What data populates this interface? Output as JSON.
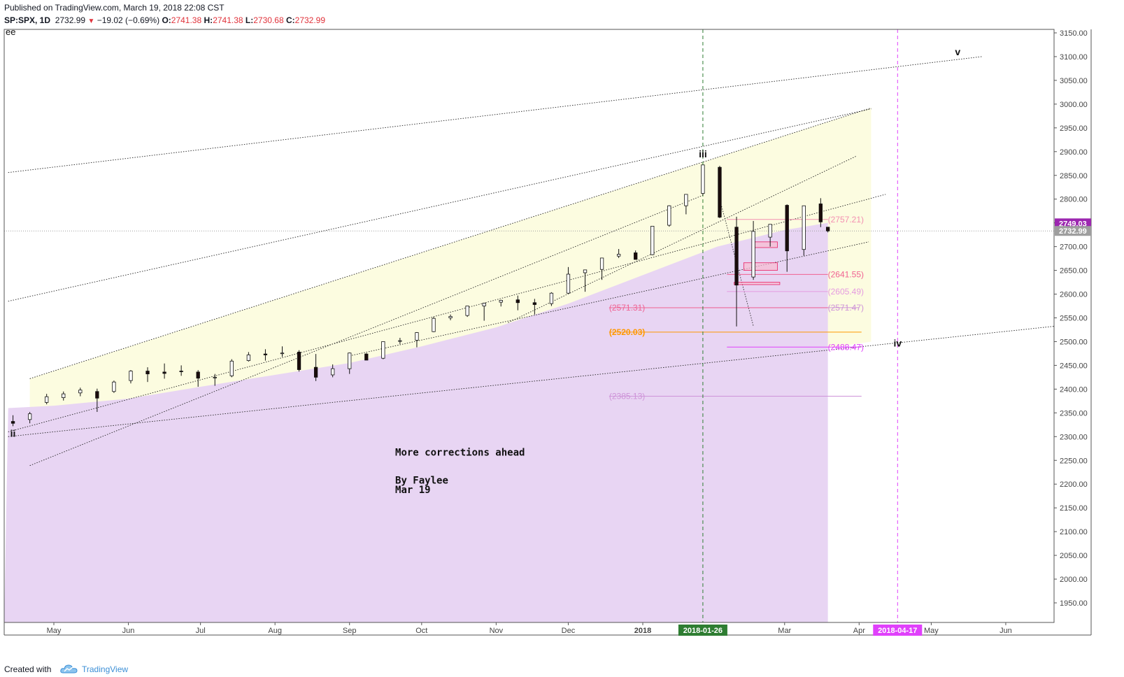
{
  "header": {
    "published": "Published on TradingView.com, March 19, 2018 22:08 CST",
    "symbol": "SP:SPX, 1D",
    "last": "2732.99",
    "change": "−19.02 (−0.69%)",
    "o_label": "O:",
    "o_value": "2741.38",
    "h_label": "H:",
    "h_value": "2741.38",
    "l_label": "L:",
    "l_value": "2730.68",
    "c_label": "C:",
    "c_value": "2732.99"
  },
  "footer": {
    "created": "Created with",
    "brand": "TradingView"
  },
  "chart_data": {
    "type": "candlestick",
    "symbol": "SP:SPX",
    "interval": "1D",
    "ylim": [
      1900,
      3170
    ],
    "y_ticks": [
      "3150.00",
      "3100.00",
      "3050.00",
      "3000.00",
      "2950.00",
      "2900.00",
      "2850.00",
      "2800.00",
      "2750.00",
      "2700.00",
      "2650.00",
      "2600.00",
      "2550.00",
      "2500.00",
      "2450.00",
      "2400.00",
      "2350.00",
      "2300.00",
      "2250.00",
      "2200.00",
      "2150.00",
      "2100.00",
      "2050.00",
      "2000.00",
      "1950.00"
    ],
    "y_tick_values": [
      3150,
      3100,
      3050,
      3000,
      2950,
      2900,
      2850,
      2800,
      2750,
      2700,
      2650,
      2600,
      2550,
      2500,
      2450,
      2400,
      2350,
      2300,
      2250,
      2200,
      2150,
      2100,
      2050,
      2000,
      1950
    ],
    "x_ticks": [
      {
        "label": "May",
        "date": "2017-05-01"
      },
      {
        "label": "Jun",
        "date": "2017-06-01"
      },
      {
        "label": "Jul",
        "date": "2017-07-01"
      },
      {
        "label": "Aug",
        "date": "2017-08-01"
      },
      {
        "label": "Sep",
        "date": "2017-09-01"
      },
      {
        "label": "Oct",
        "date": "2017-10-01"
      },
      {
        "label": "Nov",
        "date": "2017-11-01"
      },
      {
        "label": "Dec",
        "date": "2017-12-01"
      },
      {
        "label": "2018",
        "date": "2018-01-01"
      },
      {
        "label": "Mar",
        "date": "2018-03-01"
      },
      {
        "label": "Apr",
        "date": "2018-04-01"
      },
      {
        "label": "May",
        "date": "2018-05-01"
      },
      {
        "label": "Jun",
        "date": "2018-06-01"
      }
    ],
    "price_badges": [
      {
        "label": "2749.03",
        "value": 2749.03,
        "color": "#9c27b0"
      },
      {
        "label": "2732.99",
        "value": 2732.99,
        "color": "#9e9e9e"
      }
    ],
    "date_badges": [
      {
        "label": "2018-01-26",
        "color": "#2e7d32"
      },
      {
        "label": "2018-04-17",
        "color": "#e040fb"
      }
    ],
    "wave_labels": [
      {
        "text": "ii",
        "date": "2017-04-14",
        "value": 2300
      },
      {
        "text": "iii",
        "date": "2018-01-26",
        "value": 2888
      },
      {
        "text": "iv",
        "date": "2018-04-17",
        "value": 2490
      },
      {
        "text": "v",
        "date": "2018-05-12",
        "value": 3103
      }
    ],
    "fib_levels": [
      {
        "label": "(2757.21)",
        "value": 2757.21,
        "color": "#f48fb1"
      },
      {
        "label": "(2641.55)",
        "value": 2641.55,
        "color": "#f06292"
      },
      {
        "label": "(2605.49)",
        "value": 2605.49,
        "color": "#e59be0"
      },
      {
        "label": "(2571.47)",
        "value": 2571.47,
        "color": "#ce93d8"
      },
      {
        "label": "(2571.31)",
        "value": 2571.31,
        "color": "#f06292"
      },
      {
        "label": "(2520.03)",
        "value": 2520.03,
        "color": "#ff9800"
      },
      {
        "label": "(2488.47)",
        "value": 2488.47,
        "color": "#e040fb"
      },
      {
        "label": "(2385.13)",
        "value": 2385.13,
        "color": "#ce93d8"
      }
    ],
    "notes": {
      "title": "More corrections ahead",
      "byline": "By Faylee",
      "date": "Mar 19"
    },
    "top_left_label": "ee",
    "candles": [
      {
        "d": "2017-04-14",
        "o": 2332,
        "h": 2345,
        "l": 2322,
        "c": 2328
      },
      {
        "d": "2017-04-21",
        "o": 2336,
        "h": 2352,
        "l": 2328,
        "c": 2348
      },
      {
        "d": "2017-04-28",
        "o": 2372,
        "h": 2390,
        "l": 2368,
        "c": 2384
      },
      {
        "d": "2017-05-05",
        "o": 2382,
        "h": 2395,
        "l": 2376,
        "c": 2390
      },
      {
        "d": "2017-05-12",
        "o": 2392,
        "h": 2403,
        "l": 2385,
        "c": 2398
      },
      {
        "d": "2017-05-19",
        "o": 2395,
        "h": 2401,
        "l": 2352,
        "c": 2381
      },
      {
        "d": "2017-05-26",
        "o": 2395,
        "h": 2418,
        "l": 2392,
        "c": 2415
      },
      {
        "d": "2017-06-02",
        "o": 2418,
        "h": 2440,
        "l": 2412,
        "c": 2438
      },
      {
        "d": "2017-06-09",
        "o": 2438,
        "h": 2446,
        "l": 2415,
        "c": 2432
      },
      {
        "d": "2017-06-16",
        "o": 2436,
        "h": 2454,
        "l": 2422,
        "c": 2433
      },
      {
        "d": "2017-06-23",
        "o": 2438,
        "h": 2450,
        "l": 2428,
        "c": 2437
      },
      {
        "d": "2017-06-30",
        "o": 2436,
        "h": 2440,
        "l": 2405,
        "c": 2423
      },
      {
        "d": "2017-07-07",
        "o": 2424,
        "h": 2432,
        "l": 2407,
        "c": 2425
      },
      {
        "d": "2017-07-14",
        "o": 2428,
        "h": 2463,
        "l": 2425,
        "c": 2459
      },
      {
        "d": "2017-07-21",
        "o": 2460,
        "h": 2478,
        "l": 2458,
        "c": 2472
      },
      {
        "d": "2017-07-28",
        "o": 2474,
        "h": 2484,
        "l": 2460,
        "c": 2472
      },
      {
        "d": "2017-08-04",
        "o": 2476,
        "h": 2490,
        "l": 2468,
        "c": 2476
      },
      {
        "d": "2017-08-11",
        "o": 2478,
        "h": 2482,
        "l": 2437,
        "c": 2441
      },
      {
        "d": "2017-08-18",
        "o": 2446,
        "h": 2474,
        "l": 2417,
        "c": 2425
      },
      {
        "d": "2017-08-25",
        "o": 2430,
        "h": 2452,
        "l": 2425,
        "c": 2443
      },
      {
        "d": "2017-09-01",
        "o": 2443,
        "h": 2477,
        "l": 2432,
        "c": 2476
      },
      {
        "d": "2017-09-08",
        "o": 2474,
        "h": 2476,
        "l": 2462,
        "c": 2461
      },
      {
        "d": "2017-09-15",
        "o": 2465,
        "h": 2500,
        "l": 2463,
        "c": 2500
      },
      {
        "d": "2017-09-22",
        "o": 2502,
        "h": 2508,
        "l": 2495,
        "c": 2502
      },
      {
        "d": "2017-09-29",
        "o": 2503,
        "h": 2520,
        "l": 2488,
        "c": 2519
      },
      {
        "d": "2017-10-06",
        "o": 2521,
        "h": 2552,
        "l": 2520,
        "c": 2549
      },
      {
        "d": "2017-10-13",
        "o": 2550,
        "h": 2557,
        "l": 2545,
        "c": 2553
      },
      {
        "d": "2017-10-20",
        "o": 2555,
        "h": 2575,
        "l": 2552,
        "c": 2575
      },
      {
        "d": "2017-10-27",
        "o": 2575,
        "h": 2582,
        "l": 2544,
        "c": 2581
      },
      {
        "d": "2017-11-03",
        "o": 2583,
        "h": 2588,
        "l": 2574,
        "c": 2587
      },
      {
        "d": "2017-11-10",
        "o": 2588,
        "h": 2597,
        "l": 2566,
        "c": 2582
      },
      {
        "d": "2017-11-17",
        "o": 2582,
        "h": 2590,
        "l": 2557,
        "c": 2578
      },
      {
        "d": "2017-11-24",
        "o": 2580,
        "h": 2604,
        "l": 2575,
        "c": 2602
      },
      {
        "d": "2017-12-01",
        "o": 2602,
        "h": 2657,
        "l": 2600,
        "c": 2642
      },
      {
        "d": "2017-12-08",
        "o": 2645,
        "h": 2651,
        "l": 2605,
        "c": 2651
      },
      {
        "d": "2017-12-15",
        "o": 2652,
        "h": 2676,
        "l": 2630,
        "c": 2676
      },
      {
        "d": "2017-12-22",
        "o": 2680,
        "h": 2695,
        "l": 2676,
        "c": 2684
      },
      {
        "d": "2017-12-29",
        "o": 2687,
        "h": 2692,
        "l": 2673,
        "c": 2673
      },
      {
        "d": "2018-01-05",
        "o": 2683,
        "h": 2743,
        "l": 2682,
        "c": 2743
      },
      {
        "d": "2018-01-12",
        "o": 2745,
        "h": 2787,
        "l": 2742,
        "c": 2786
      },
      {
        "d": "2018-01-19",
        "o": 2786,
        "h": 2810,
        "l": 2768,
        "c": 2810
      },
      {
        "d": "2018-01-26",
        "o": 2812,
        "h": 2872,
        "l": 2808,
        "c": 2872
      },
      {
        "d": "2018-02-02",
        "o": 2867,
        "h": 2870,
        "l": 2760,
        "c": 2762
      },
      {
        "d": "2018-02-09",
        "o": 2741,
        "h": 2763,
        "l": 2532,
        "c": 2619
      },
      {
        "d": "2018-02-16",
        "o": 2636,
        "h": 2754,
        "l": 2630,
        "c": 2732
      },
      {
        "d": "2018-02-23",
        "o": 2720,
        "h": 2747,
        "l": 2700,
        "c": 2747
      },
      {
        "d": "2018-03-02",
        "o": 2787,
        "h": 2789,
        "l": 2647,
        "c": 2691
      },
      {
        "d": "2018-03-09",
        "o": 2694,
        "h": 2786,
        "l": 2681,
        "c": 2786
      },
      {
        "d": "2018-03-16",
        "o": 2790,
        "h": 2802,
        "l": 2741,
        "c": 2752
      },
      {
        "d": "2018-03-19",
        "o": 2741,
        "h": 2741,
        "l": 2730,
        "c": 2733
      }
    ],
    "trendlines": [
      {
        "from": [
          "2017-04-12",
          2300
        ],
        "to": [
          "2018-06-30",
          2537
        ],
        "style": "dotted"
      },
      {
        "from": [
          "2017-04-12",
          2585
        ],
        "to": [
          "2018-04-06",
          2990
        ],
        "style": "dotted"
      },
      {
        "from": [
          "2017-04-12",
          2856
        ],
        "to": [
          "2018-05-22",
          3100
        ],
        "style": "dotted"
      },
      {
        "from": [
          "2017-04-21",
          2422
        ],
        "to": [
          "2018-04-06",
          2992
        ],
        "style": "dotted"
      },
      {
        "from": [
          "2017-04-21",
          2239
        ],
        "to": [
          "2018-01-26",
          2808
        ],
        "style": "dotted"
      },
      {
        "from": [
          "2017-04-12",
          2310
        ],
        "to": [
          "2018-04-12",
          2810
        ],
        "style": "dotted"
      },
      {
        "from": [
          "2017-11-06",
          2540
        ],
        "to": [
          "2018-03-31",
          2891
        ],
        "style": "dotted"
      },
      {
        "from": [
          "2018-02-02",
          2800
        ],
        "to": [
          "2018-02-16",
          2533
        ],
        "style": "dotted"
      },
      {
        "from": [
          "2017-09-01",
          2470
        ],
        "to": [
          "2018-04-05",
          2710
        ],
        "style": "dotted"
      }
    ],
    "vlines": [
      {
        "date": "2018-01-26",
        "color": "#2e7d32"
      },
      {
        "date": "2018-04-17",
        "color": "#e040fb"
      }
    ]
  }
}
